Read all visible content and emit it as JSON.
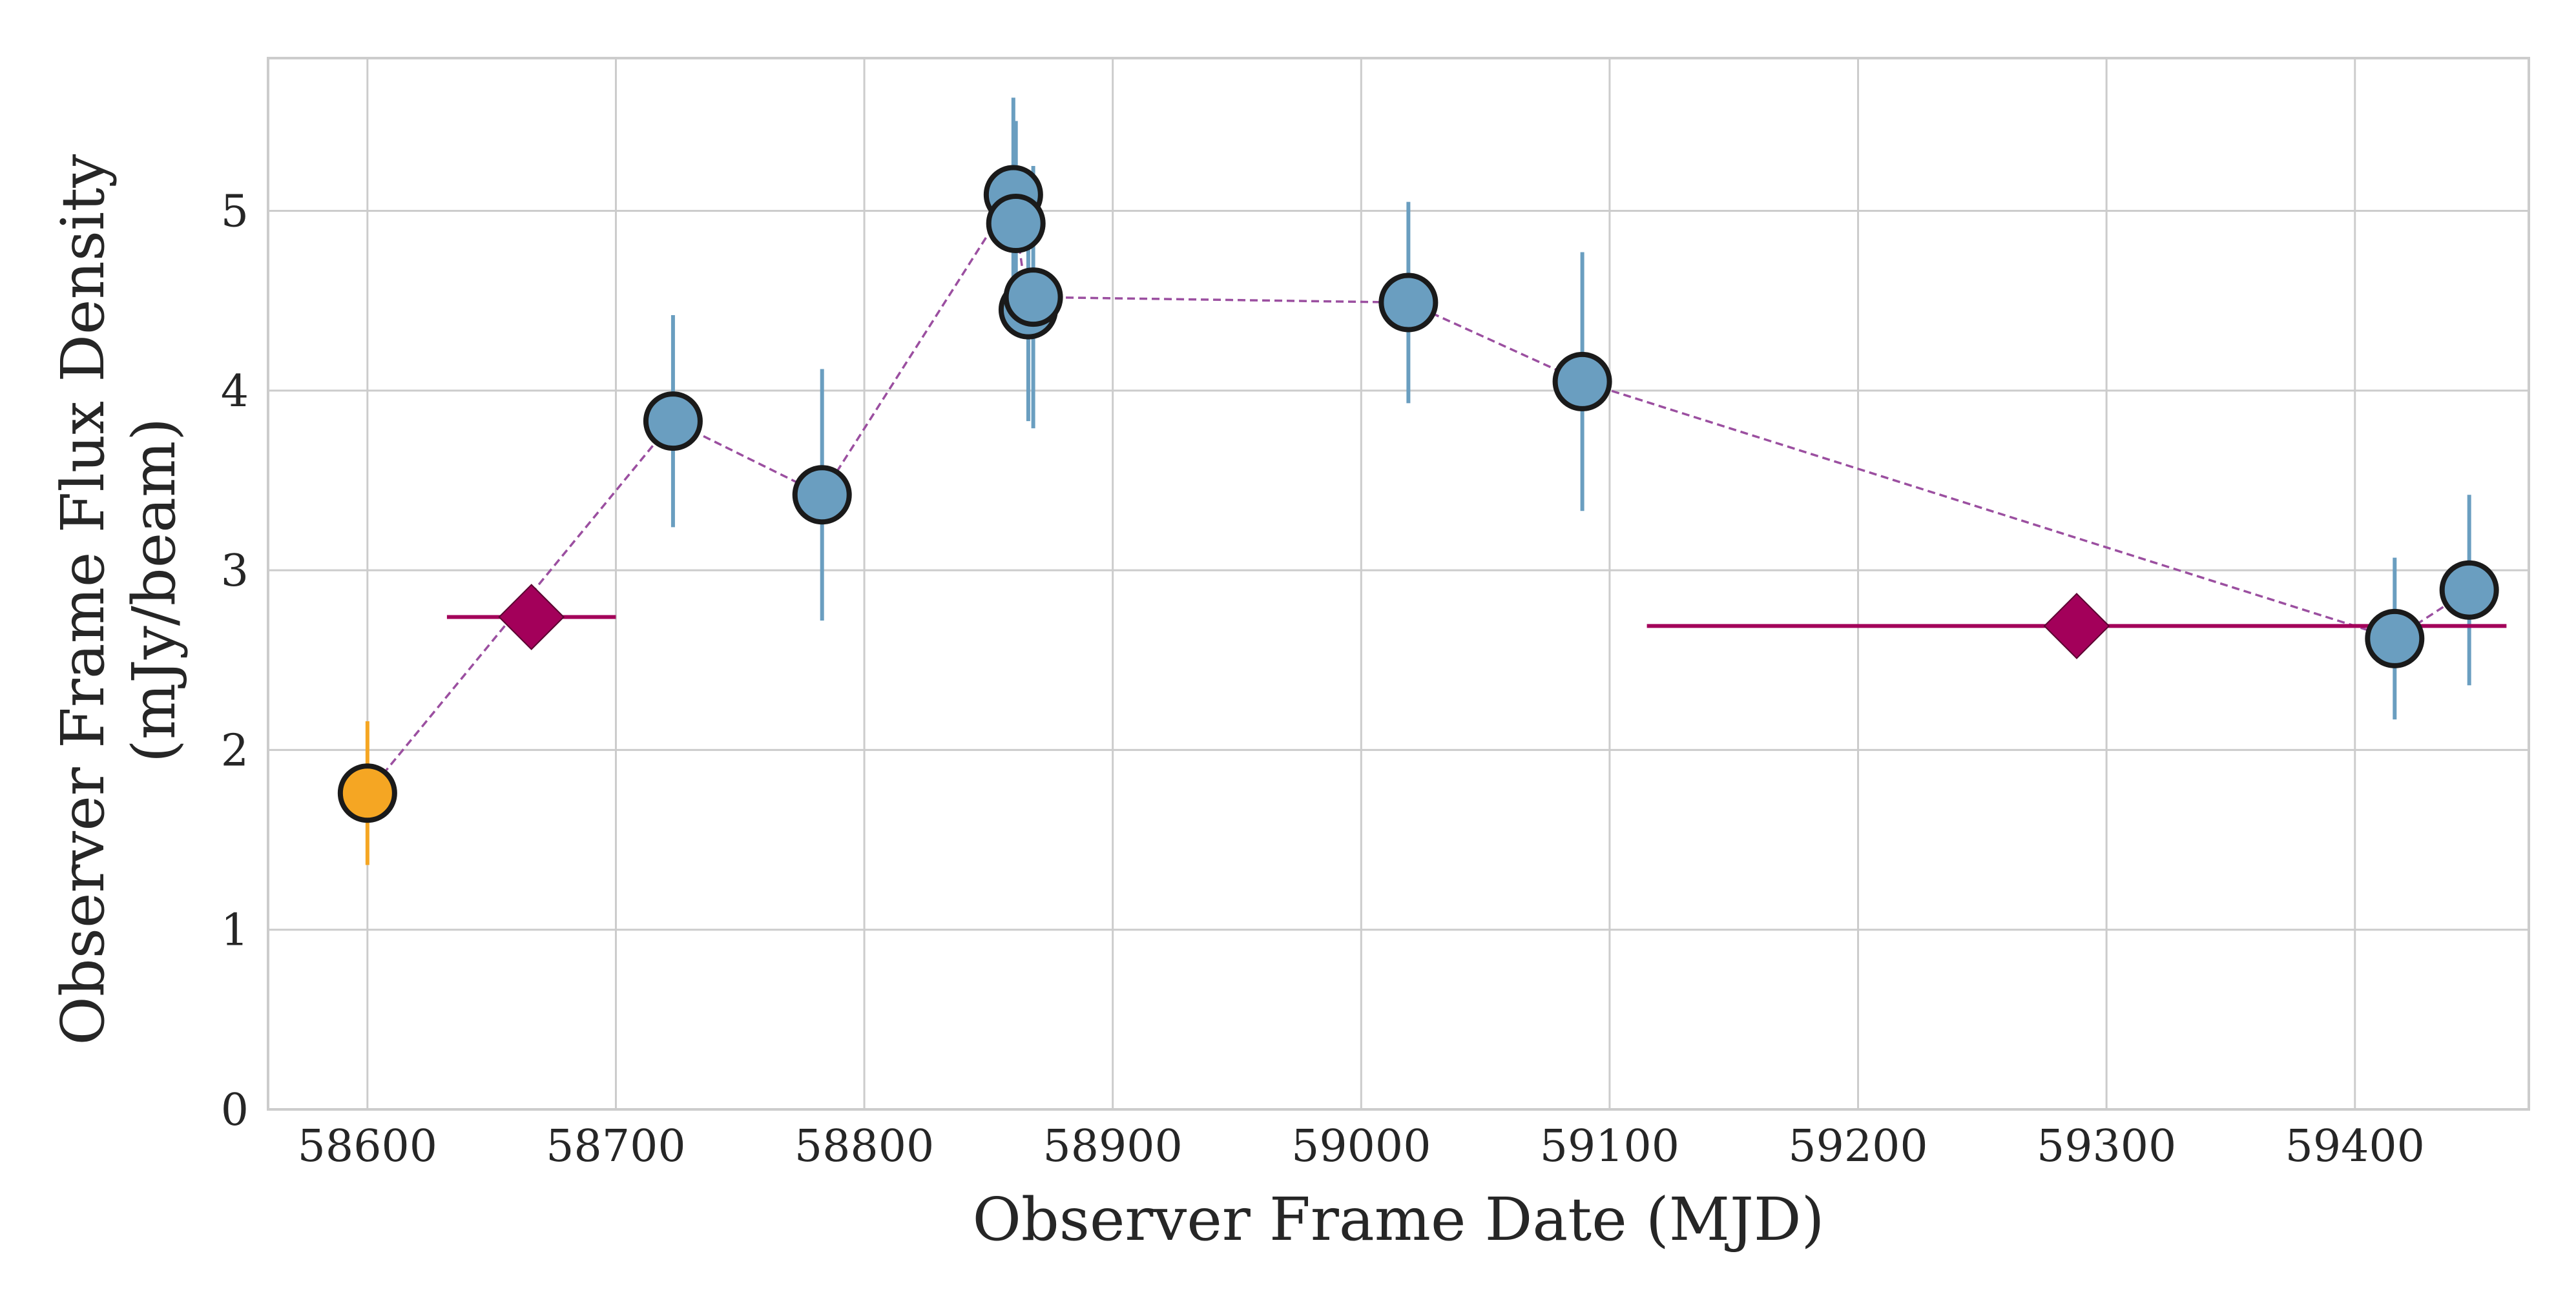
{
  "chart_data": {
    "type": "scatter",
    "xlabel": "Observer Frame Date (MJD)",
    "ylabel_lines": [
      "Observer Frame Flux Density",
      "(mJy/beam)"
    ],
    "xlim": [
      58560,
      59470
    ],
    "ylim": [
      0,
      5.85
    ],
    "x_ticks": [
      58600,
      58700,
      58800,
      58900,
      59000,
      59100,
      59200,
      59300,
      59400
    ],
    "y_ticks": [
      0,
      1,
      2,
      3,
      4,
      5
    ],
    "grid": true,
    "colors": {
      "blue_marker": "#6a9ec0",
      "blue_errorbar": "#6a9ec0",
      "orange_marker": "#f5a623",
      "orange_errorbar": "#f5a623",
      "diamond": "#a3005a",
      "connecting_line": "#9b4fa0",
      "marker_edge": "#1a1a1a",
      "grid": "#cccccc",
      "frame": "#cccccc"
    },
    "series": [
      {
        "marker": "circle",
        "color": "#f5a623",
        "points": [
          {
            "x": 58600,
            "y": 1.76,
            "yerr": 0.4
          }
        ]
      },
      {
        "marker": "circle",
        "color": "#6a9ec0",
        "points": [
          {
            "x": 58723,
            "y": 3.83,
            "yerr": 0.59
          },
          {
            "x": 58783,
            "y": 3.42,
            "yerr": 0.7
          },
          {
            "x": 58860,
            "y": 5.09,
            "yerr": 0.54
          },
          {
            "x": 58861,
            "y": 4.93,
            "yerr": 0.57
          },
          {
            "x": 58866,
            "y": 4.45,
            "yerr": 0.62
          },
          {
            "x": 58868,
            "y": 4.52,
            "yerr": 0.73
          },
          {
            "x": 59019,
            "y": 4.49,
            "yerr": 0.56
          },
          {
            "x": 59089,
            "y": 4.05,
            "yerr": 0.72
          },
          {
            "x": 59416,
            "y": 2.62,
            "yerr": 0.45
          },
          {
            "x": 59446,
            "y": 2.89,
            "yerr": 0.53
          }
        ]
      },
      {
        "marker": "diamond",
        "color": "#a3005a",
        "points": [
          {
            "x": 58666,
            "y": 2.74,
            "xerr_low": 34,
            "xerr_high": 34
          },
          {
            "x": 59288,
            "y": 2.69,
            "xerr_low": 173,
            "xerr_high": 173
          }
        ]
      }
    ],
    "connecting_line": {
      "style": "dashed",
      "points": [
        {
          "x": 58600,
          "y": 1.76
        },
        {
          "x": 58723,
          "y": 3.83
        },
        {
          "x": 58783,
          "y": 3.42
        },
        {
          "x": 58860,
          "y": 5.09
        },
        {
          "x": 58861,
          "y": 4.93
        },
        {
          "x": 58866,
          "y": 4.45
        },
        {
          "x": 58868,
          "y": 4.52
        },
        {
          "x": 59019,
          "y": 4.49
        },
        {
          "x": 59089,
          "y": 4.05
        },
        {
          "x": 59416,
          "y": 2.62
        },
        {
          "x": 59446,
          "y": 2.89
        }
      ]
    }
  }
}
